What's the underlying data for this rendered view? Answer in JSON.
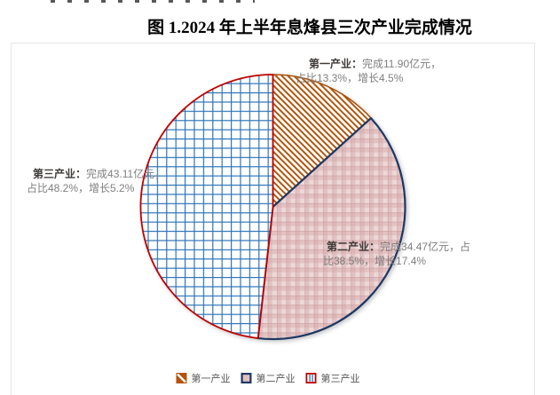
{
  "page": {
    "figure_title": "图 1.2024 年上半年息烽县三次产业完成情况"
  },
  "chart_data": {
    "type": "pie",
    "title": "图 1.2024 年上半年息烽县三次产业完成情况",
    "unit": "亿元",
    "start_angle_deg": 0,
    "clockwise": true,
    "legend_position": "bottom",
    "slices": [
      {
        "name": "第一产业",
        "value": 11.9,
        "percent": 13.3,
        "growth_percent": 4.5,
        "color": "#A8520B",
        "pattern_id": "pat-hatch",
        "pattern": "orange diagonal hatch on white"
      },
      {
        "name": "第二产业",
        "value": 34.47,
        "percent": 38.5,
        "growth_percent": 17.4,
        "color": "#1F3864",
        "pattern_id": "pat-plaid",
        "pattern": "pink plaid"
      },
      {
        "name": "第三产业",
        "value": 43.11,
        "percent": 48.2,
        "growth_percent": 5.2,
        "color": "#C00000",
        "pattern_id": "pat-grid",
        "pattern": "blue grid on white"
      }
    ]
  },
  "labels": {
    "s1": {
      "lead": "第一产业：",
      "line1_rest": "完成11.90亿元，",
      "line2": "占比13.3%，增长4.5%"
    },
    "s2": {
      "lead": "第二产业：",
      "line1_rest": "完成34.47亿元，占",
      "line2": "比38.5%，增长17.4%"
    },
    "s3": {
      "lead": "第三产业：",
      "line1_rest": "完成43.11亿元，",
      "line2": "占比48.2%，增长5.2%"
    }
  },
  "legend": {
    "items": [
      {
        "label": "第一产业"
      },
      {
        "label": "第二产业"
      },
      {
        "label": "第三产业"
      }
    ]
  }
}
